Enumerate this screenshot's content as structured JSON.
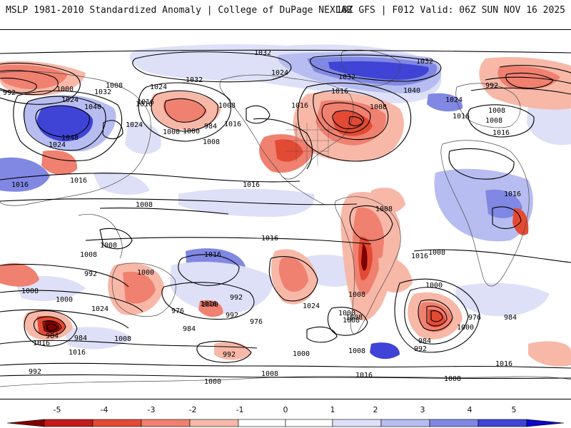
{
  "header": {
    "title": "MSLP 1981-2010 Standardized Anomaly | College of DuPage NEXLAB",
    "run_info": "18Z GFS | F012 Valid: 06Z SUN NOV 16 2025"
  },
  "colors": {
    "neg5": "#7f0000",
    "neg4": "#c41a1a",
    "neg3": "#e34a33",
    "neg2": "#f08070",
    "neg1": "#f7b8a8",
    "zero": "#ffffff",
    "pos1": "#dde0f7",
    "pos2": "#b7bdf0",
    "pos3": "#8088e3",
    "pos4": "#3f44d6",
    "pos5": "#0a0ac8",
    "land": "#555555"
  },
  "isobar_labels": [
    {
      "id": "l1",
      "text": "1032"
    },
    {
      "id": "l2",
      "text": "1032"
    },
    {
      "id": "l3",
      "text": "1032"
    },
    {
      "id": "l4",
      "text": "1032"
    },
    {
      "id": "l5",
      "text": "1024"
    },
    {
      "id": "l6",
      "text": "1000"
    },
    {
      "id": "l7",
      "text": "992"
    },
    {
      "id": "l8",
      "text": "1024"
    },
    {
      "id": "l9",
      "text": "1040"
    },
    {
      "id": "l10",
      "text": "1048"
    },
    {
      "id": "l11",
      "text": "1024"
    },
    {
      "id": "l12",
      "text": "1016"
    },
    {
      "id": "l13",
      "text": "1016"
    },
    {
      "id": "l14",
      "text": "1008"
    },
    {
      "id": "l15",
      "text": "1000"
    },
    {
      "id": "l16",
      "text": "984"
    },
    {
      "id": "l17",
      "text": "1016"
    },
    {
      "id": "l18",
      "text": "1008"
    },
    {
      "id": "l19",
      "text": "1024"
    },
    {
      "id": "l20",
      "text": "1024"
    },
    {
      "id": "l21",
      "text": "1016"
    },
    {
      "id": "l22",
      "text": "1008"
    },
    {
      "id": "l23",
      "text": "1016"
    },
    {
      "id": "l24",
      "text": "1000"
    },
    {
      "id": "l25",
      "text": "1008"
    },
    {
      "id": "l26",
      "text": "1040"
    },
    {
      "id": "l27",
      "text": "1024"
    },
    {
      "id": "l28",
      "text": "1032"
    },
    {
      "id": "l29",
      "text": "992"
    },
    {
      "id": "l30",
      "text": "1016"
    },
    {
      "id": "l31",
      "text": "1008"
    },
    {
      "id": "l32",
      "text": "1008"
    },
    {
      "id": "l33",
      "text": "1016"
    },
    {
      "id": "l34",
      "text": "1016"
    },
    {
      "id": "l35",
      "text": "1016"
    },
    {
      "id": "l36",
      "text": "1016"
    },
    {
      "id": "l37",
      "text": "1008"
    },
    {
      "id": "l38",
      "text": "1008"
    },
    {
      "id": "l39",
      "text": "1016"
    },
    {
      "id": "l40",
      "text": "1016"
    },
    {
      "id": "l41",
      "text": "1008"
    },
    {
      "id": "l42",
      "text": "1000"
    },
    {
      "id": "l43",
      "text": "1016"
    },
    {
      "id": "l44",
      "text": "1008"
    },
    {
      "id": "l45",
      "text": "992"
    },
    {
      "id": "l46",
      "text": "1016"
    },
    {
      "id": "l47",
      "text": "1008"
    },
    {
      "id": "l48",
      "text": "1000"
    },
    {
      "id": "l49",
      "text": "1024"
    },
    {
      "id": "l50",
      "text": "992"
    },
    {
      "id": "l51",
      "text": "1024"
    },
    {
      "id": "l52",
      "text": "1008"
    },
    {
      "id": "l53",
      "text": "1000"
    },
    {
      "id": "l54",
      "text": "1008"
    },
    {
      "id": "l55",
      "text": "1000"
    },
    {
      "id": "l56",
      "text": "992"
    },
    {
      "id": "l57",
      "text": "984"
    },
    {
      "id": "l58",
      "text": "976"
    },
    {
      "id": "l59",
      "text": "984"
    },
    {
      "id": "l60",
      "text": "1016"
    },
    {
      "id": "l61",
      "text": "976"
    },
    {
      "id": "l62",
      "text": "992"
    },
    {
      "id": "l63",
      "text": "984"
    },
    {
      "id": "l64",
      "text": "1000"
    },
    {
      "id": "l65",
      "text": "1008"
    },
    {
      "id": "l66",
      "text": "1016"
    },
    {
      "id": "l67",
      "text": "992"
    },
    {
      "id": "l68",
      "text": "1008"
    },
    {
      "id": "l69",
      "text": "1000"
    },
    {
      "id": "l70",
      "text": "976"
    },
    {
      "id": "l71",
      "text": "984"
    },
    {
      "id": "l72",
      "text": "992"
    },
    {
      "id": "l73",
      "text": "984"
    },
    {
      "id": "l74",
      "text": "1000"
    },
    {
      "id": "l75",
      "text": "1008"
    },
    {
      "id": "l76",
      "text": "1016"
    },
    {
      "id": "l77",
      "text": "1000"
    },
    {
      "id": "l78",
      "text": "1008"
    },
    {
      "id": "l79",
      "text": "1016"
    },
    {
      "id": "l80",
      "text": "1008"
    },
    {
      "id": "l81",
      "text": "1016"
    },
    {
      "id": "l82",
      "text": "1008"
    }
  ],
  "legend": {
    "ticks": [
      "-5",
      "-4",
      "-3",
      "-2",
      "-1",
      "0",
      "1",
      "2",
      "3",
      "4",
      "5"
    ]
  }
}
